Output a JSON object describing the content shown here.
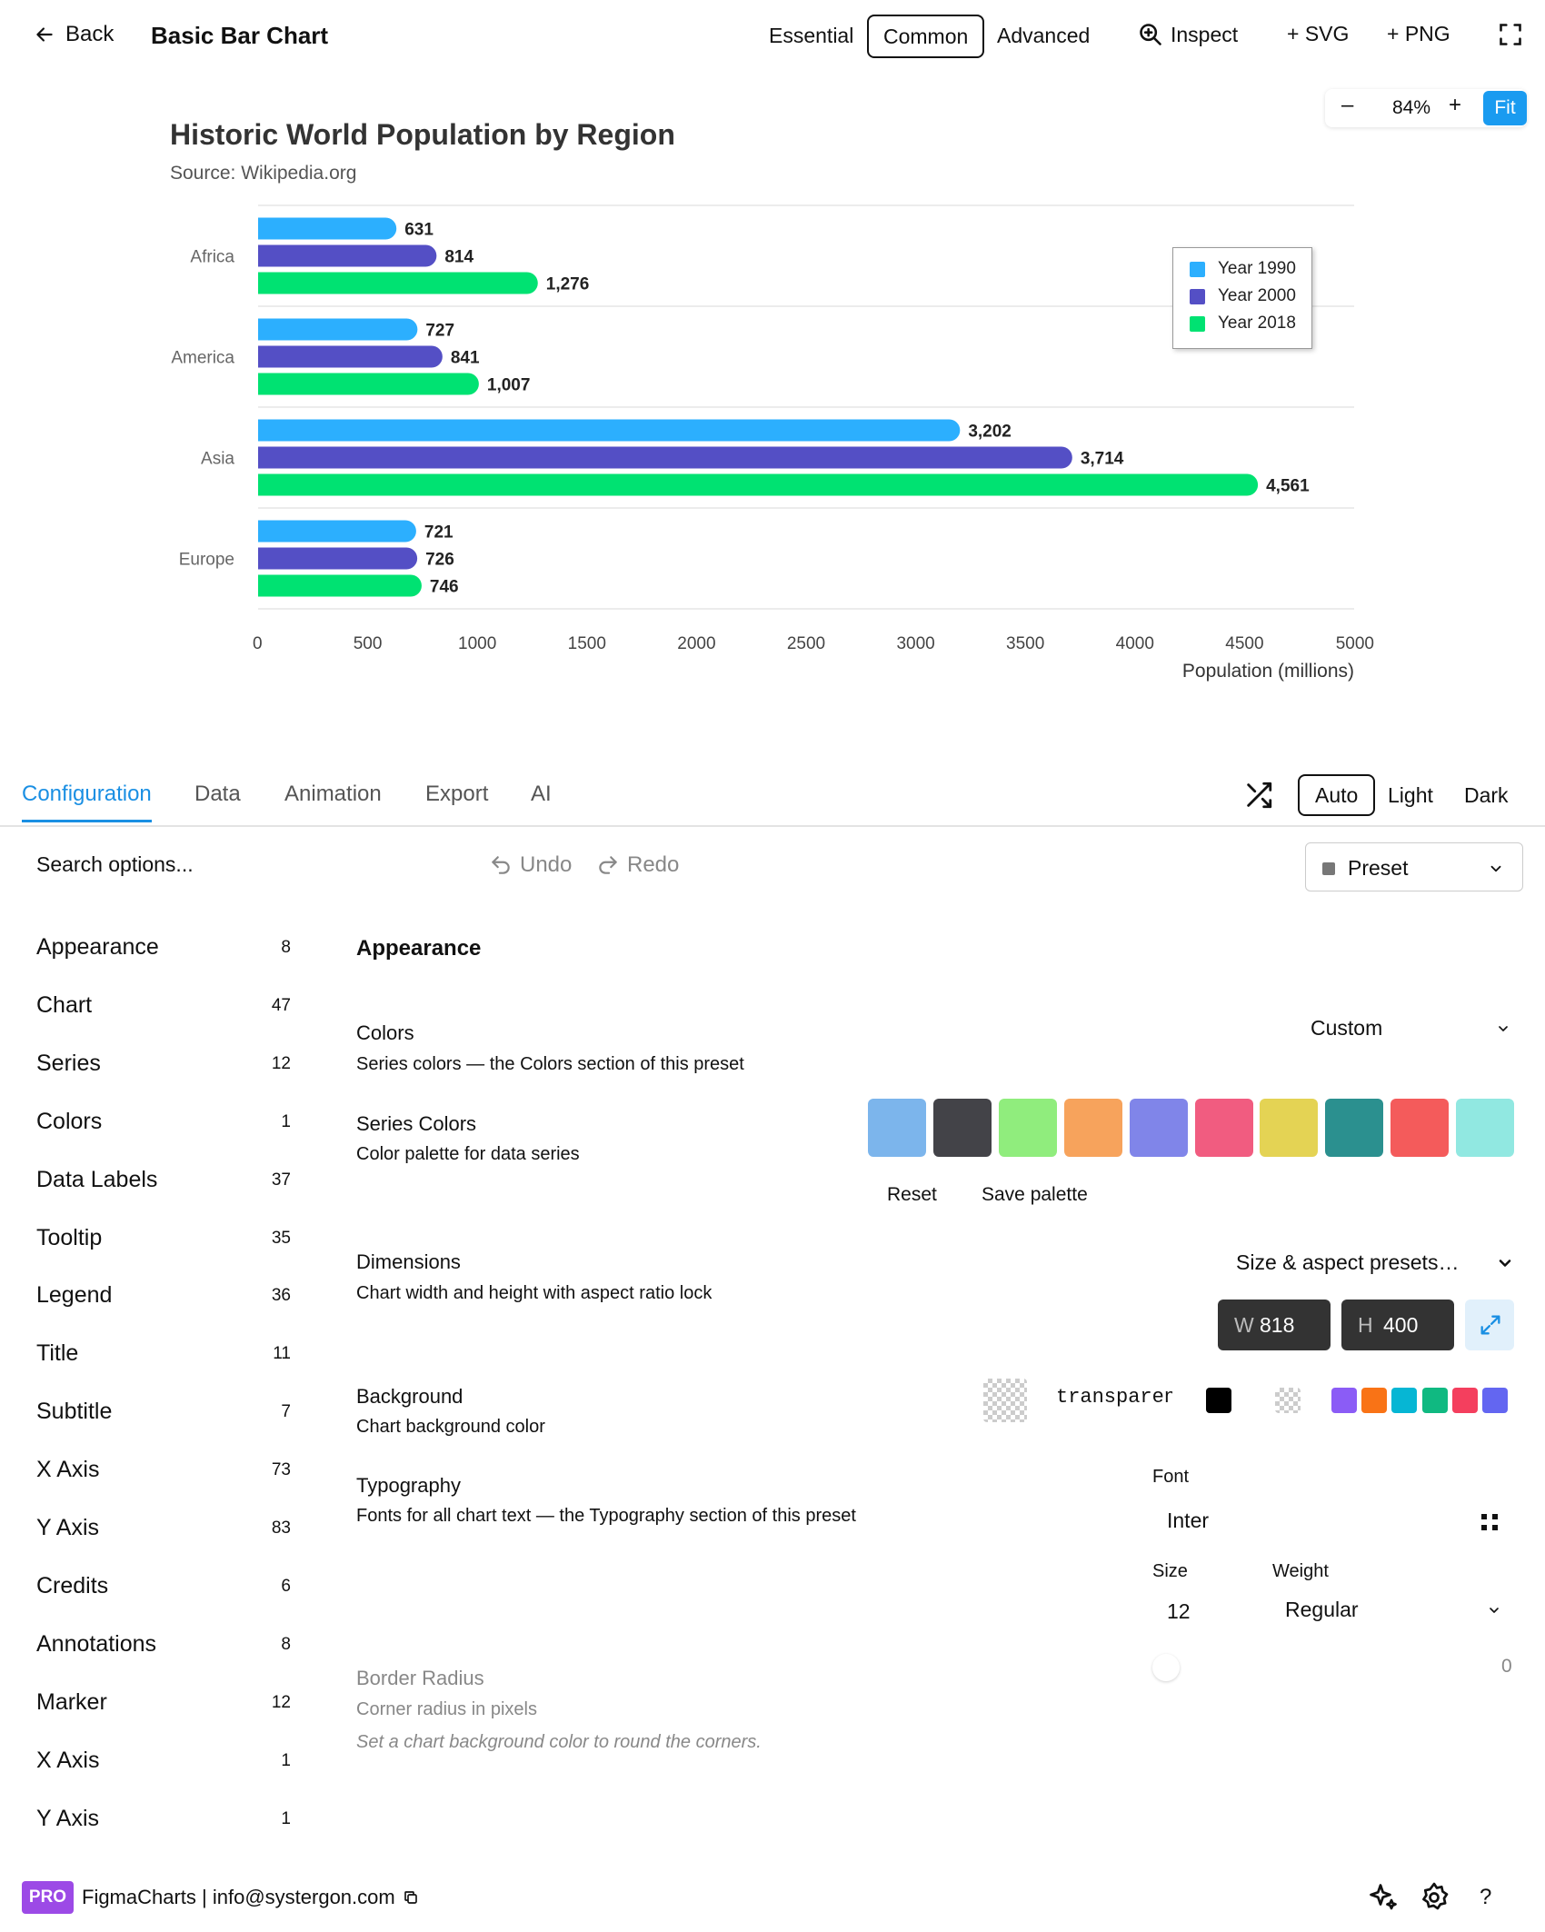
{
  "topbar": {
    "back_label": "Back",
    "title": "Basic Bar Chart",
    "modes": [
      "Essential",
      "Common",
      "Advanced"
    ],
    "active_mode": "Common",
    "inspect_label": "Inspect",
    "svg_label": "+ SVG",
    "png_label": "+ PNG"
  },
  "zoom": {
    "minus": "–",
    "value": "84%",
    "plus": "+",
    "fit": "Fit"
  },
  "chart_data": {
    "type": "bar",
    "orientation": "horizontal",
    "title": "Historic World Population by Region",
    "subtitle": "Source: Wikipedia.org",
    "categories": [
      "Africa",
      "America",
      "Asia",
      "Europe"
    ],
    "series": [
      {
        "name": "Year 1990",
        "color": "#2caffe",
        "values": [
          631,
          727,
          3202,
          721
        ],
        "labels": [
          "631",
          "727",
          "3,202",
          "721"
        ]
      },
      {
        "name": "Year 2000",
        "color": "#544fc5",
        "values": [
          814,
          841,
          3714,
          726
        ],
        "labels": [
          "814",
          "841",
          "3,714",
          "726"
        ]
      },
      {
        "name": "Year 2018",
        "color": "#00e272",
        "values": [
          1276,
          1007,
          4561,
          746
        ],
        "labels": [
          "1,276",
          "1,007",
          "4,561",
          "746"
        ]
      }
    ],
    "xlim": [
      0,
      5000
    ],
    "xticks": [
      "0",
      "500",
      "1000",
      "1500",
      "2000",
      "2500",
      "3000",
      "3500",
      "4000",
      "4500",
      "5000"
    ],
    "xlabel": "Population (millions)",
    "ylabel": "",
    "legend": "top-right",
    "grid": true
  },
  "tabs": {
    "items": [
      "Configuration",
      "Data",
      "Animation",
      "Export",
      "AI"
    ],
    "active": "Configuration",
    "themes": [
      "Auto",
      "Light",
      "Dark"
    ],
    "active_theme": "Auto"
  },
  "toolbar": {
    "search_placeholder": "Search options...",
    "undo": "Undo",
    "redo": "Redo",
    "preset": "Preset"
  },
  "sidebar": {
    "items": [
      {
        "label": "Appearance",
        "count": "8"
      },
      {
        "label": "Chart",
        "count": "47"
      },
      {
        "label": "Series",
        "count": "12"
      },
      {
        "label": "Colors",
        "count": "1"
      },
      {
        "label": "Data Labels",
        "count": "37"
      },
      {
        "label": "Tooltip",
        "count": "35"
      },
      {
        "label": "Legend",
        "count": "36"
      },
      {
        "label": "Title",
        "count": "11"
      },
      {
        "label": "Subtitle",
        "count": "7"
      },
      {
        "label": "X Axis",
        "count": "73"
      },
      {
        "label": "Y Axis",
        "count": "83"
      },
      {
        "label": "Credits",
        "count": "6"
      },
      {
        "label": "Annotations",
        "count": "8"
      },
      {
        "label": "Marker",
        "count": "12"
      },
      {
        "label": "X Axis",
        "count": "1"
      },
      {
        "label": "Y Axis",
        "count": "1"
      }
    ]
  },
  "panel": {
    "section_title": "Appearance",
    "colors": {
      "label": "Colors",
      "desc": "Series colors — the Colors section of this preset",
      "value": "Custom"
    },
    "series_colors": {
      "label": "Series Colors",
      "desc": "Color palette for data series",
      "palette": [
        "#7cb5ec",
        "#434348",
        "#90ed7d",
        "#f7a35c",
        "#8085e9",
        "#f15c80",
        "#e4d354",
        "#2b908f",
        "#f45b5b",
        "#91e8e1"
      ],
      "reset": "Reset",
      "save": "Save palette"
    },
    "dimensions": {
      "label": "Dimensions",
      "desc": "Chart width and height with aspect ratio lock",
      "preset_label": "Size & aspect presets…",
      "w_label": "W",
      "w_value": "818",
      "h_label": "H",
      "h_value": "400"
    },
    "background": {
      "label": "Background",
      "desc": "Chart background color",
      "value": "transparent",
      "quick_colors": [
        "#8b5cf6",
        "#f97316",
        "#06b6d4",
        "#10b981",
        "#f43f5e",
        "#6366f1"
      ],
      "black": "#000000"
    },
    "typography": {
      "label": "Typography",
      "desc": "Fonts for all chart text — the Typography section of this preset",
      "font_label": "Font",
      "font_value": "Inter",
      "size_label": "Size",
      "size_value": "12",
      "weight_label": "Weight",
      "weight_value": "Regular"
    },
    "border_radius": {
      "label": "Border Radius",
      "desc": "Corner radius in pixels",
      "note": "Set a chart background color to round the corners.",
      "value": "0"
    }
  },
  "footer": {
    "badge": "PRO",
    "text": "FigmaCharts | info@systergon.com",
    "help": "?"
  }
}
